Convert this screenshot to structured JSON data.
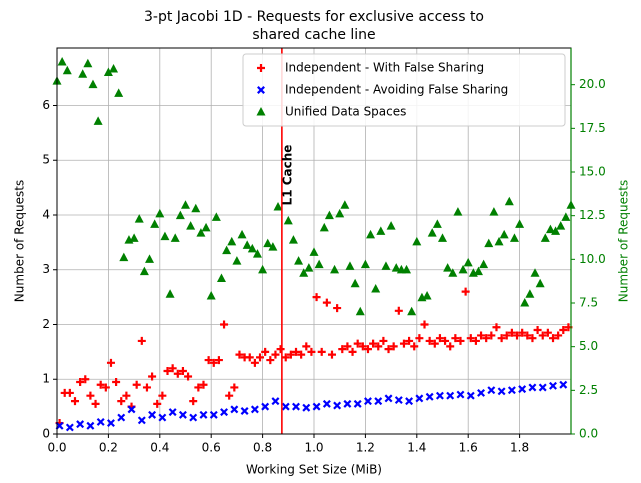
{
  "chart_data": {
    "type": "scatter",
    "title": [
      "3-pt Jacobi 1D - Requests for exclusive access to",
      "shared cache line"
    ],
    "xlabel": "Working Set Size (MiB)",
    "ylabel": "Number of Requests",
    "y2label": "Number of Requests",
    "y2color": "#008000",
    "xlim": [
      0,
      2.0
    ],
    "ylim": [
      0,
      7.05
    ],
    "y2lim": [
      0,
      22.1
    ],
    "xticks": [
      {
        "value": 0,
        "label": "0.0"
      },
      0.2,
      0.4,
      0.6,
      0.8,
      {
        "value": 1,
        "label": "1.0"
      },
      1.2,
      1.4,
      1.6,
      1.8
    ],
    "yticks": [
      0,
      1,
      2,
      3,
      4,
      5,
      6
    ],
    "y2ticks": [
      {
        "value": 0,
        "label": "0.0"
      },
      2.5,
      {
        "value": 5,
        "label": "5.0"
      },
      7.5,
      {
        "value": 10,
        "label": "10.0"
      },
      12.5,
      {
        "value": 15,
        "label": "15.0"
      },
      17.5,
      {
        "value": 20,
        "label": "20.0"
      }
    ],
    "grid": true,
    "legend": "upper right",
    "vline": {
      "x": 0.875,
      "color": "#ff0000",
      "label": "L1 Cache"
    },
    "series": [
      {
        "name": "Independent - With False Sharing",
        "color": "#ff0000",
        "marker": "plus",
        "x": [
          0.01,
          0.03,
          0.05,
          0.07,
          0.09,
          0.11,
          0.13,
          0.15,
          0.17,
          0.19,
          0.21,
          0.23,
          0.25,
          0.27,
          0.29,
          0.31,
          0.33,
          0.35,
          0.37,
          0.39,
          0.41,
          0.43,
          0.45,
          0.47,
          0.49,
          0.51,
          0.53,
          0.55,
          0.57,
          0.59,
          0.61,
          0.63,
          0.65,
          0.67,
          0.69,
          0.71,
          0.73,
          0.75,
          0.77,
          0.79,
          0.81,
          0.83,
          0.85,
          0.87,
          0.89,
          0.91,
          0.93,
          0.95,
          0.97,
          0.99,
          1.01,
          1.03,
          1.05,
          1.07,
          1.09,
          1.11,
          1.13,
          1.15,
          1.17,
          1.19,
          1.21,
          1.23,
          1.25,
          1.27,
          1.29,
          1.31,
          1.33,
          1.35,
          1.37,
          1.39,
          1.41,
          1.43,
          1.45,
          1.47,
          1.49,
          1.51,
          1.53,
          1.55,
          1.57,
          1.59,
          1.61,
          1.63,
          1.65,
          1.67,
          1.69,
          1.71,
          1.73,
          1.75,
          1.77,
          1.79,
          1.81,
          1.83,
          1.85,
          1.87,
          1.89,
          1.91,
          1.93,
          1.95,
          1.97,
          1.99
        ],
        "values": [
          0.2,
          0.75,
          0.75,
          0.6,
          0.95,
          1.0,
          0.7,
          0.55,
          0.9,
          0.85,
          1.3,
          0.95,
          0.6,
          0.7,
          0.5,
          0.9,
          1.7,
          0.85,
          1.05,
          0.55,
          0.7,
          1.15,
          1.2,
          1.1,
          1.15,
          1.05,
          0.6,
          0.85,
          0.9,
          1.35,
          1.3,
          1.35,
          2.0,
          0.7,
          0.85,
          1.45,
          1.4,
          1.4,
          1.3,
          1.4,
          1.5,
          1.35,
          1.45,
          1.55,
          1.4,
          1.45,
          1.5,
          1.45,
          1.6,
          1.5,
          2.5,
          1.5,
          2.4,
          1.45,
          2.3,
          1.55,
          1.6,
          1.5,
          1.65,
          1.6,
          1.55,
          1.65,
          1.6,
          1.7,
          1.55,
          1.6,
          2.25,
          1.65,
          1.7,
          1.6,
          1.75,
          2.0,
          1.7,
          1.65,
          1.75,
          1.7,
          1.6,
          1.75,
          1.7,
          2.6,
          1.75,
          1.7,
          1.8,
          1.75,
          1.8,
          1.95,
          1.75,
          1.8,
          1.85,
          1.8,
          1.85,
          1.8,
          1.75,
          1.9,
          1.8,
          1.85,
          1.75,
          1.8,
          1.9,
          1.95
        ]
      },
      {
        "name": "Independent - Avoiding False Sharing",
        "color": "#0000ff",
        "marker": "x",
        "x": [
          0.01,
          0.05,
          0.09,
          0.13,
          0.17,
          0.21,
          0.25,
          0.29,
          0.33,
          0.37,
          0.41,
          0.45,
          0.49,
          0.53,
          0.57,
          0.61,
          0.65,
          0.69,
          0.73,
          0.77,
          0.81,
          0.85,
          0.89,
          0.93,
          0.97,
          1.01,
          1.05,
          1.09,
          1.13,
          1.17,
          1.21,
          1.25,
          1.29,
          1.33,
          1.37,
          1.41,
          1.45,
          1.49,
          1.53,
          1.57,
          1.61,
          1.65,
          1.69,
          1.73,
          1.77,
          1.81,
          1.85,
          1.89,
          1.93,
          1.97
        ],
        "values": [
          0.15,
          0.12,
          0.18,
          0.15,
          0.22,
          0.2,
          0.3,
          0.45,
          0.25,
          0.35,
          0.3,
          0.4,
          0.35,
          0.3,
          0.35,
          0.35,
          0.4,
          0.45,
          0.42,
          0.45,
          0.5,
          0.6,
          0.5,
          0.5,
          0.48,
          0.5,
          0.55,
          0.52,
          0.55,
          0.55,
          0.6,
          0.6,
          0.65,
          0.62,
          0.6,
          0.65,
          0.68,
          0.7,
          0.7,
          0.72,
          0.7,
          0.75,
          0.8,
          0.78,
          0.8,
          0.82,
          0.85,
          0.85,
          0.88,
          0.9
        ]
      },
      {
        "name": "Unified Data Spaces",
        "color": "#008000",
        "marker": "triangle",
        "axis": "y2",
        "x": [
          0,
          0.02,
          0.04,
          0.1,
          0.12,
          0.14,
          0.16,
          0.2,
          0.22,
          0.24,
          0.26,
          0.28,
          0.3,
          0.32,
          0.34,
          0.36,
          0.38,
          0.4,
          0.42,
          0.44,
          0.46,
          0.48,
          0.5,
          0.52,
          0.54,
          0.56,
          0.58,
          0.6,
          0.62,
          0.64,
          0.66,
          0.68,
          0.7,
          0.72,
          0.74,
          0.76,
          0.78,
          0.8,
          0.82,
          0.84,
          0.86,
          0.9,
          0.92,
          0.94,
          0.96,
          0.98,
          1.0,
          1.02,
          1.04,
          1.06,
          1.08,
          1.1,
          1.12,
          1.14,
          1.16,
          1.18,
          1.2,
          1.22,
          1.24,
          1.26,
          1.28,
          1.3,
          1.32,
          1.34,
          1.36,
          1.38,
          1.4,
          1.42,
          1.44,
          1.46,
          1.48,
          1.5,
          1.52,
          1.54,
          1.56,
          1.58,
          1.6,
          1.62,
          1.64,
          1.66,
          1.68,
          1.7,
          1.72,
          1.74,
          1.76,
          1.78,
          1.8,
          1.82,
          1.84,
          1.86,
          1.88,
          1.9,
          1.92,
          1.94,
          1.96,
          1.98,
          2.0
        ],
        "values": [
          20.2,
          21.3,
          20.8,
          20.6,
          21.2,
          20.0,
          17.9,
          20.7,
          20.9,
          19.5,
          10.1,
          11.1,
          11.2,
          12.3,
          9.3,
          10.0,
          12.0,
          12.6,
          11.3,
          8.0,
          11.2,
          12.5,
          13.1,
          11.9,
          12.9,
          11.5,
          11.8,
          7.9,
          12.4,
          8.9,
          10.5,
          11.0,
          9.9,
          11.4,
          10.8,
          10.6,
          10.3,
          9.4,
          10.9,
          10.7,
          13.0,
          12.2,
          11.1,
          9.9,
          9.2,
          9.5,
          10.4,
          9.7,
          11.8,
          12.5,
          9.4,
          12.6,
          13.1,
          9.6,
          8.6,
          7.0,
          9.7,
          11.4,
          8.3,
          11.6,
          9.6,
          11.9,
          9.5,
          9.4,
          9.4,
          7.0,
          11.0,
          7.8,
          7.9,
          11.5,
          12.0,
          11.2,
          9.5,
          9.2,
          12.7,
          9.4,
          9.8,
          9.2,
          9.3,
          9.7,
          10.9,
          12.7,
          11.0,
          11.4,
          13.3,
          11.2,
          12.0,
          7.5,
          8.0,
          9.2,
          8.6,
          11.2,
          11.7,
          11.6,
          11.9,
          12.4,
          13.1
        ]
      }
    ]
  }
}
